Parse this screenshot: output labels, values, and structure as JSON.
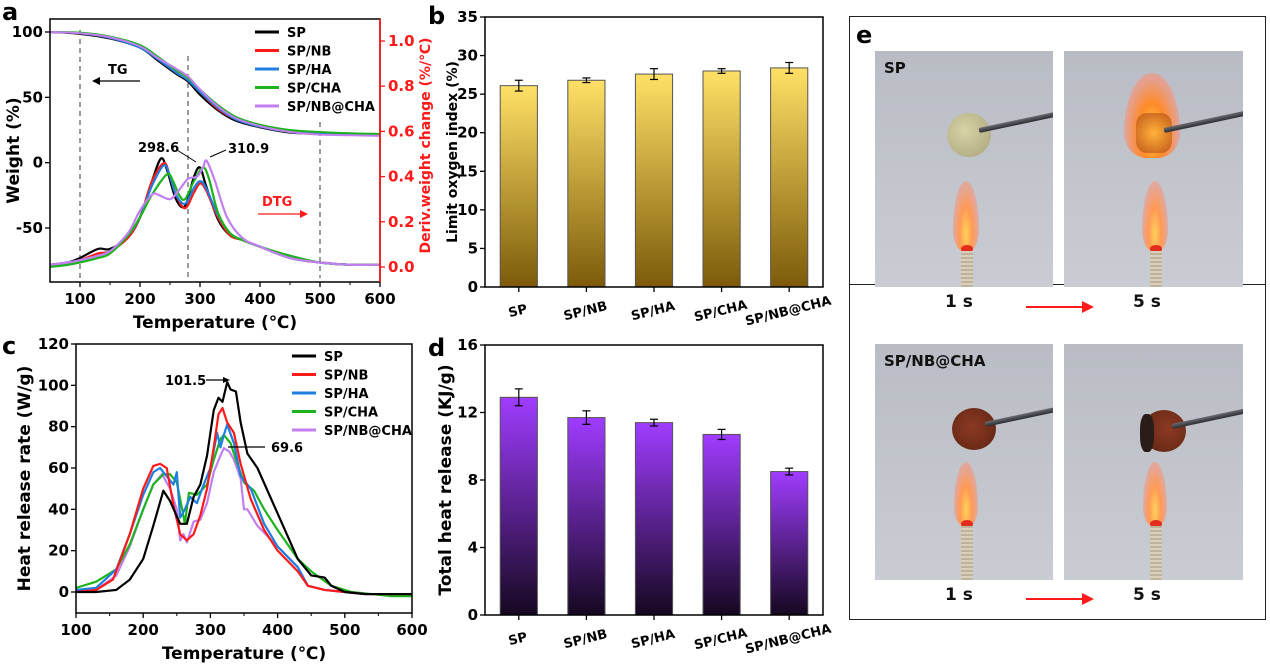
{
  "panel_labels": {
    "a": "a",
    "b": "b",
    "c": "c",
    "d": "d",
    "e": "e"
  },
  "colors": {
    "SP": "#000000",
    "SP/NB": "#ff1a1a",
    "SP/HA": "#1e7fe0",
    "SP/CHA": "#1db31d",
    "SP/NB@CHA": "#c27ff0",
    "red_axis": "#ff1a1a",
    "lo_bar_top": "#ffe066",
    "lo_bar_bottom": "#7d5a0a",
    "thr_bar_top": "#a03cff",
    "thr_bar_bottom": "#150820"
  },
  "chart_data": [
    {
      "id": "a",
      "type": "line",
      "title": "",
      "xlabel": "Temperature (℃)",
      "ylabel": "Weight (%)",
      "y2label": "Deriv.weight change (%/℃)",
      "xlim": [
        50,
        600
      ],
      "ylim": [
        -85,
        110
      ],
      "y2lim": [
        -0.05,
        1.09
      ],
      "xticks": [
        100,
        200,
        300,
        400,
        500,
        600
      ],
      "yticks": [
        100,
        50,
        0,
        -50
      ],
      "y2ticks": [
        0.0,
        0.2,
        0.4,
        0.6,
        0.8,
        1.0
      ],
      "y2tick_labels": [
        "0.0",
        "0.2",
        "0.4",
        "0.6",
        "0.8",
        "1.0"
      ],
      "vlines": [
        100,
        280,
        500
      ],
      "annotations": [
        {
          "text": "298.6",
          "x": 298.6
        },
        {
          "text": "310.9",
          "x": 310.9
        },
        {
          "text": "TG",
          "direction": "left"
        },
        {
          "text": "DTG",
          "direction": "right"
        }
      ],
      "legend": [
        "SP",
        "SP/NB",
        "SP/HA",
        "SP/CHA",
        "SP/NB@CHA"
      ],
      "legend_position": "top-right",
      "tg_series": [
        {
          "name": "SP",
          "x": [
            50,
            100,
            150,
            200,
            230,
            260,
            280,
            300,
            330,
            360,
            400,
            450,
            500,
            550,
            600
          ],
          "y": [
            100,
            98.5,
            95,
            88,
            78,
            68,
            62,
            52,
            40,
            32,
            27,
            23,
            22,
            21.5,
            21
          ]
        },
        {
          "name": "SP/NB",
          "x": [
            50,
            100,
            150,
            200,
            230,
            260,
            280,
            300,
            330,
            360,
            400,
            450,
            500,
            550,
            600
          ],
          "y": [
            100,
            99,
            95.5,
            88.5,
            79,
            69,
            63,
            54,
            41,
            33,
            27.5,
            23.5,
            22,
            21.5,
            21
          ]
        },
        {
          "name": "SP/HA",
          "x": [
            50,
            100,
            150,
            200,
            230,
            260,
            280,
            300,
            330,
            360,
            400,
            450,
            500,
            550,
            600
          ],
          "y": [
            100,
            99,
            95.5,
            88,
            79,
            69,
            63,
            54,
            42,
            33,
            27.5,
            23.5,
            22,
            21.5,
            21
          ]
        },
        {
          "name": "SP/CHA",
          "x": [
            50,
            100,
            150,
            200,
            230,
            260,
            280,
            300,
            330,
            360,
            400,
            450,
            500,
            550,
            600
          ],
          "y": [
            100,
            99.5,
            96.5,
            90,
            81,
            71,
            65,
            56,
            44,
            35,
            29,
            25,
            23.5,
            22.5,
            22
          ]
        },
        {
          "name": "SP/NB@CHA",
          "x": [
            50,
            100,
            150,
            200,
            230,
            260,
            280,
            300,
            330,
            360,
            400,
            450,
            500,
            550,
            600
          ],
          "y": [
            100,
            99,
            96,
            89,
            80,
            72,
            66,
            56,
            43,
            34,
            28,
            23.5,
            21.5,
            21,
            20.5
          ]
        }
      ],
      "dtg_series": [
        {
          "name": "SP",
          "x": [
            50,
            80,
            100,
            130,
            150,
            180,
            200,
            220,
            235,
            245,
            260,
            275,
            290,
            300,
            310,
            330,
            350,
            370,
            400,
            450,
            500,
            550,
            600
          ],
          "y": [
            0.01,
            0.02,
            0.04,
            0.08,
            0.08,
            0.13,
            0.22,
            0.38,
            0.48,
            0.43,
            0.3,
            0.27,
            0.4,
            0.44,
            0.36,
            0.21,
            0.14,
            0.12,
            0.09,
            0.04,
            0.02,
            0.01,
            0.01
          ]
        },
        {
          "name": "SP/NB",
          "x": [
            50,
            80,
            100,
            130,
            150,
            180,
            200,
            220,
            240,
            250,
            260,
            275,
            290,
            300,
            310,
            330,
            350,
            370,
            400,
            450,
            500,
            550,
            600
          ],
          "y": [
            0.01,
            0.02,
            0.03,
            0.06,
            0.07,
            0.13,
            0.22,
            0.38,
            0.46,
            0.4,
            0.32,
            0.26,
            0.33,
            0.37,
            0.34,
            0.22,
            0.14,
            0.12,
            0.09,
            0.04,
            0.02,
            0.01,
            0.01
          ]
        },
        {
          "name": "SP/HA",
          "x": [
            50,
            80,
            100,
            130,
            150,
            180,
            200,
            220,
            240,
            250,
            260,
            275,
            290,
            300,
            310,
            330,
            350,
            370,
            400,
            450,
            500,
            550,
            600
          ],
          "y": [
            0.01,
            0.02,
            0.03,
            0.05,
            0.07,
            0.14,
            0.22,
            0.36,
            0.45,
            0.4,
            0.32,
            0.28,
            0.35,
            0.38,
            0.35,
            0.23,
            0.15,
            0.12,
            0.09,
            0.04,
            0.02,
            0.01,
            0.01
          ]
        },
        {
          "name": "SP/CHA",
          "x": [
            50,
            80,
            100,
            130,
            150,
            180,
            200,
            220,
            245,
            255,
            265,
            275,
            290,
            305,
            315,
            330,
            350,
            370,
            400,
            450,
            500,
            550,
            600
          ],
          "y": [
            0.0,
            0.01,
            0.02,
            0.04,
            0.06,
            0.14,
            0.22,
            0.32,
            0.41,
            0.38,
            0.32,
            0.3,
            0.38,
            0.44,
            0.39,
            0.24,
            0.15,
            0.12,
            0.09,
            0.05,
            0.02,
            0.01,
            0.01
          ]
        },
        {
          "name": "SP/NB@CHA",
          "x": [
            50,
            80,
            100,
            130,
            150,
            180,
            200,
            220,
            230,
            250,
            265,
            280,
            295,
            305,
            311,
            325,
            345,
            370,
            400,
            450,
            500,
            550,
            600
          ],
          "y": [
            0.01,
            0.02,
            0.03,
            0.05,
            0.07,
            0.15,
            0.25,
            0.32,
            0.32,
            0.3,
            0.34,
            0.39,
            0.4,
            0.44,
            0.47,
            0.38,
            0.22,
            0.13,
            0.09,
            0.04,
            0.02,
            0.01,
            0.01
          ]
        }
      ]
    },
    {
      "id": "b",
      "type": "bar",
      "title": "",
      "xlabel": "",
      "ylabel": "Limit oxygen index (%)",
      "categories": [
        "SP",
        "SP/NB",
        "SP/HA",
        "SP/CHA",
        "SP/NB@CHA"
      ],
      "values": [
        26.1,
        26.8,
        27.6,
        28.0,
        28.4
      ],
      "errors": [
        0.7,
        0.3,
        0.7,
        0.3,
        0.7
      ],
      "ylim": [
        0,
        35
      ],
      "yticks": [
        0,
        5,
        10,
        15,
        20,
        25,
        30,
        35
      ]
    },
    {
      "id": "c",
      "type": "line",
      "title": "",
      "xlabel": "Temperature (℃)",
      "ylabel": "Heat release rate (W/g)",
      "xlim": [
        100,
        600
      ],
      "ylim": [
        -10,
        120
      ],
      "xticks": [
        100,
        200,
        300,
        400,
        500,
        600
      ],
      "yticks": [
        0,
        20,
        40,
        60,
        80,
        100,
        120
      ],
      "annotations": [
        {
          "text": "101.5",
          "x": 325,
          "y": 101.5
        },
        {
          "text": "69.6",
          "x": 320,
          "y": 69.6
        }
      ],
      "legend": [
        "SP",
        "SP/NB",
        "SP/HA",
        "SP/CHA",
        "SP/NB@CHA"
      ],
      "legend_position": "top-right",
      "series": [
        {
          "name": "SP",
          "x": [
            100,
            130,
            160,
            180,
            200,
            215,
            230,
            240,
            255,
            265,
            275,
            285,
            295,
            305,
            312,
            318,
            325,
            330,
            338,
            345,
            355,
            370,
            400,
            430,
            450,
            470,
            480,
            500,
            530,
            560,
            600
          ],
          "y": [
            0,
            0,
            1,
            6,
            16,
            32,
            49,
            44,
            33,
            33,
            46,
            52,
            66,
            88,
            94,
            92,
            101.5,
            98,
            97,
            82,
            67,
            60,
            38,
            16,
            8,
            7,
            3,
            0,
            -1,
            -1,
            -1
          ]
        },
        {
          "name": "SP/NB",
          "x": [
            100,
            130,
            155,
            180,
            200,
            215,
            225,
            235,
            245,
            255,
            265,
            275,
            285,
            295,
            305,
            312,
            318,
            325,
            335,
            345,
            360,
            380,
            400,
            430,
            445,
            470,
            500,
            530,
            560,
            600
          ],
          "y": [
            0,
            1,
            6,
            28,
            50,
            61,
            62,
            60,
            42,
            28,
            25,
            28,
            37,
            50,
            70,
            86,
            89,
            82,
            77,
            62,
            45,
            30,
            20,
            10,
            3,
            1,
            0,
            -1,
            -1,
            -1
          ]
        },
        {
          "name": "SP/HA",
          "x": [
            100,
            130,
            160,
            180,
            200,
            215,
            225,
            235,
            245,
            250,
            255,
            262,
            270,
            280,
            290,
            300,
            310,
            315,
            320,
            325,
            335,
            345,
            360,
            380,
            400,
            430,
            445,
            470,
            500,
            530,
            560,
            600
          ],
          "y": [
            1,
            2,
            11,
            28,
            47,
            58,
            60,
            56,
            52,
            58,
            36,
            40,
            46,
            43,
            52,
            60,
            77,
            70,
            76,
            81,
            72,
            56,
            50,
            33,
            22,
            12,
            3,
            1,
            0,
            -1,
            -1,
            -1
          ]
        },
        {
          "name": "SP/CHA",
          "x": [
            100,
            130,
            160,
            180,
            200,
            215,
            230,
            240,
            250,
            258,
            262,
            268,
            280,
            295,
            305,
            315,
            320,
            330,
            340,
            350,
            365,
            380,
            400,
            430,
            450,
            480,
            510,
            540,
            570,
            600
          ],
          "y": [
            2,
            5,
            11,
            23,
            40,
            52,
            57,
            57,
            53,
            40,
            33,
            48,
            47,
            52,
            64,
            74,
            76,
            72,
            62,
            53,
            49,
            40,
            30,
            16,
            10,
            3,
            0,
            -1,
            -2,
            -2
          ]
        },
        {
          "name": "SP/NB@CHA",
          "x": [
            100,
            130,
            160,
            180,
            200,
            215,
            228,
            240,
            250,
            255,
            260,
            265,
            275,
            285,
            295,
            305,
            315,
            320,
            328,
            335,
            345,
            350,
            355,
            370,
            400,
            430,
            445,
            470,
            500,
            530,
            560,
            600
          ],
          "y": [
            0,
            1,
            8,
            22,
            40,
            52,
            57,
            50,
            40,
            25,
            28,
            24,
            34,
            35,
            43,
            58,
            66,
            69.6,
            68,
            64,
            55,
            40,
            40,
            32,
            22,
            12,
            3,
            1,
            0,
            -1,
            -1,
            -1
          ]
        }
      ]
    },
    {
      "id": "d",
      "type": "bar",
      "title": "",
      "xlabel": "",
      "ylabel": "Total heat release (KJ/g)",
      "categories": [
        "SP",
        "SP/NB",
        "SP/HA",
        "SP/CHA",
        "SP/NB@CHA"
      ],
      "values": [
        12.9,
        11.7,
        11.4,
        10.7,
        8.5
      ],
      "errors": [
        0.5,
        0.4,
        0.2,
        0.3,
        0.2
      ],
      "ylim": [
        0,
        16
      ],
      "yticks": [
        0,
        4,
        8,
        12,
        16
      ]
    }
  ],
  "panel_e": {
    "rows": [
      {
        "sample_label": "SP",
        "frames": [
          {
            "time": "1 s",
            "state": "intact yellow disc over flame"
          },
          {
            "time": "5 s",
            "state": "disc ignited, burning"
          }
        ]
      },
      {
        "sample_label": "SP/NB@CHA",
        "frames": [
          {
            "time": "1 s",
            "state": "intact brown disc over flame"
          },
          {
            "time": "5 s",
            "state": "edge charred, small flame"
          }
        ]
      }
    ]
  }
}
